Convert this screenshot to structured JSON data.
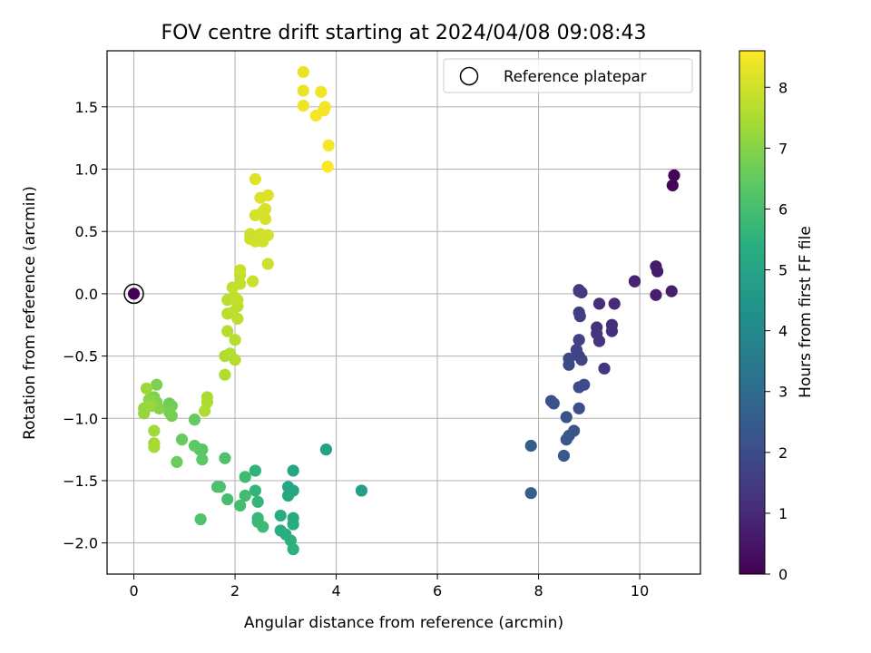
{
  "chart_data": {
    "type": "scatter",
    "title": "FOV centre drift starting at 2024/04/08 09:08:43",
    "xlabel": "Angular distance from reference (arcmin)",
    "ylabel": "Rotation from reference (arcmin)",
    "xlim": [
      -0.53,
      11.2
    ],
    "ylim": [
      -2.25,
      1.95
    ],
    "xticks": [
      0,
      2,
      4,
      6,
      8,
      10
    ],
    "yticks": [
      -2.0,
      -1.5,
      -1.0,
      -0.5,
      0.0,
      0.5,
      1.0,
      1.5
    ],
    "xtick_labels": [
      "0",
      "2",
      "4",
      "6",
      "8",
      "10"
    ],
    "ytick_labels": [
      "−2.0",
      "−1.5",
      "−1.0",
      "−0.5",
      "0.0",
      "0.5",
      "1.0",
      "1.5"
    ],
    "grid": true,
    "legend": {
      "entries": [
        "Reference platepar"
      ],
      "placement": "top-right"
    },
    "reference_point": {
      "x": 0,
      "y": 0
    },
    "colorbar": {
      "label": "Hours from first FF file",
      "range": [
        0,
        8.6
      ],
      "ticks": [
        0,
        1,
        2,
        3,
        4,
        5,
        6,
        7,
        8
      ],
      "tick_labels": [
        "0",
        "1",
        "2",
        "3",
        "4",
        "5",
        "6",
        "7",
        "8"
      ],
      "colormap": "viridis"
    },
    "points": [
      [
        0.0,
        0.0,
        0.0
      ],
      [
        10.68,
        0.95,
        0.05
      ],
      [
        10.65,
        0.87,
        0.1
      ],
      [
        10.32,
        0.22,
        0.6
      ],
      [
        10.35,
        0.18,
        0.65
      ],
      [
        10.63,
        0.02,
        0.7
      ],
      [
        10.32,
        -0.01,
        0.75
      ],
      [
        9.9,
        0.1,
        0.8
      ],
      [
        9.9,
        0.1,
        0.85
      ],
      [
        9.5,
        -0.08,
        1.0
      ],
      [
        9.2,
        -0.08,
        1.05
      ],
      [
        9.45,
        -0.25,
        1.1
      ],
      [
        9.45,
        -0.3,
        1.15
      ],
      [
        9.15,
        -0.27,
        1.2
      ],
      [
        9.15,
        -0.32,
        1.25
      ],
      [
        9.2,
        -0.38,
        1.3
      ],
      [
        9.3,
        -0.6,
        1.35
      ],
      [
        8.8,
        0.03,
        1.4
      ],
      [
        8.8,
        0.02,
        1.45
      ],
      [
        8.85,
        0.01,
        1.5
      ],
      [
        8.8,
        -0.15,
        1.55
      ],
      [
        8.82,
        -0.18,
        1.6
      ],
      [
        8.8,
        -0.37,
        1.65
      ],
      [
        8.75,
        -0.45,
        1.7
      ],
      [
        8.8,
        -0.5,
        1.75
      ],
      [
        8.85,
        -0.53,
        1.8
      ],
      [
        8.6,
        -0.52,
        1.85
      ],
      [
        8.6,
        -0.57,
        1.9
      ],
      [
        8.9,
        -0.73,
        1.95
      ],
      [
        8.8,
        -0.75,
        2.0
      ],
      [
        8.8,
        -0.92,
        2.05
      ],
      [
        8.25,
        -0.86,
        2.1
      ],
      [
        8.3,
        -0.88,
        2.15
      ],
      [
        8.55,
        -0.99,
        2.2
      ],
      [
        8.7,
        -1.1,
        2.25
      ],
      [
        8.6,
        -1.14,
        2.3
      ],
      [
        8.55,
        -1.17,
        2.35
      ],
      [
        8.5,
        -1.3,
        2.4
      ],
      [
        7.85,
        -1.22,
        2.55
      ],
      [
        7.85,
        -1.6,
        2.6
      ],
      [
        4.5,
        -1.58,
        4.8
      ],
      [
        3.8,
        -1.25,
        4.9
      ],
      [
        3.15,
        -1.42,
        5.0
      ],
      [
        3.15,
        -1.58,
        5.05
      ],
      [
        3.05,
        -1.55,
        5.1
      ],
      [
        3.05,
        -1.62,
        5.15
      ],
      [
        3.15,
        -1.8,
        5.2
      ],
      [
        3.15,
        -1.85,
        5.25
      ],
      [
        2.9,
        -1.78,
        5.3
      ],
      [
        3.0,
        -1.93,
        5.35
      ],
      [
        2.9,
        -1.9,
        5.4
      ],
      [
        3.1,
        -1.98,
        5.45
      ],
      [
        3.15,
        -2.05,
        5.5
      ],
      [
        2.4,
        -1.42,
        5.55
      ],
      [
        2.4,
        -1.58,
        5.6
      ],
      [
        2.45,
        -1.67,
        5.65
      ],
      [
        2.45,
        -1.8,
        5.7
      ],
      [
        2.45,
        -1.83,
        5.75
      ],
      [
        2.55,
        -1.87,
        5.8
      ],
      [
        2.2,
        -1.47,
        5.85
      ],
      [
        2.2,
        -1.62,
        5.9
      ],
      [
        2.1,
        -1.7,
        5.95
      ],
      [
        1.85,
        -1.65,
        6.0
      ],
      [
        1.7,
        -1.55,
        6.05
      ],
      [
        1.65,
        -1.55,
        6.1
      ],
      [
        1.8,
        -1.32,
        6.15
      ],
      [
        1.32,
        -1.81,
        6.2
      ],
      [
        1.35,
        -1.25,
        6.3
      ],
      [
        1.3,
        -1.25,
        6.35
      ],
      [
        1.35,
        -1.33,
        6.4
      ],
      [
        1.2,
        -1.22,
        6.45
      ],
      [
        1.2,
        -1.01,
        6.5
      ],
      [
        0.95,
        -1.17,
        6.55
      ],
      [
        0.85,
        -1.35,
        6.6
      ],
      [
        0.7,
        -0.88,
        6.65
      ],
      [
        0.75,
        -0.9,
        6.7
      ],
      [
        0.75,
        -0.98,
        6.75
      ],
      [
        0.7,
        -0.95,
        6.8
      ],
      [
        0.45,
        -0.73,
        6.85
      ],
      [
        0.4,
        -0.83,
        6.9
      ],
      [
        0.45,
        -0.87,
        6.95
      ],
      [
        0.5,
        -0.92,
        7.0
      ],
      [
        0.3,
        -0.85,
        7.05
      ],
      [
        0.35,
        -0.9,
        7.1
      ],
      [
        0.2,
        -0.92,
        7.15
      ],
      [
        0.2,
        -0.96,
        7.2
      ],
      [
        0.3,
        -0.9,
        7.25
      ],
      [
        0.25,
        -0.76,
        7.3
      ],
      [
        0.4,
        -1.1,
        7.35
      ],
      [
        0.4,
        -1.2,
        7.4
      ],
      [
        0.4,
        -1.23,
        7.45
      ],
      [
        1.45,
        -0.83,
        7.5
      ],
      [
        1.45,
        -0.87,
        7.52
      ],
      [
        1.4,
        -0.94,
        7.54
      ],
      [
        1.8,
        -0.5,
        7.56
      ],
      [
        1.8,
        -0.65,
        7.58
      ],
      [
        1.9,
        -0.48,
        7.6
      ],
      [
        2.0,
        -0.53,
        7.62
      ],
      [
        1.85,
        -0.3,
        7.64
      ],
      [
        2.0,
        -0.37,
        7.66
      ],
      [
        1.85,
        -0.05,
        7.68
      ],
      [
        1.85,
        -0.16,
        7.7
      ],
      [
        1.95,
        -0.15,
        7.72
      ],
      [
        2.05,
        -0.2,
        7.74
      ],
      [
        2.05,
        -0.1,
        7.76
      ],
      [
        2.0,
        -0.03,
        7.78
      ],
      [
        2.05,
        -0.05,
        7.8
      ],
      [
        1.95,
        0.05,
        7.82
      ],
      [
        2.1,
        0.08,
        7.84
      ],
      [
        2.1,
        0.15,
        7.86
      ],
      [
        2.1,
        0.19,
        7.88
      ],
      [
        2.35,
        0.1,
        7.9
      ],
      [
        2.65,
        0.24,
        7.92
      ],
      [
        2.3,
        0.44,
        7.94
      ],
      [
        2.3,
        0.48,
        7.96
      ],
      [
        2.4,
        0.42,
        7.98
      ],
      [
        2.55,
        0.42,
        8.0
      ],
      [
        2.5,
        0.48,
        8.02
      ],
      [
        2.65,
        0.47,
        8.04
      ],
      [
        2.4,
        0.63,
        8.06
      ],
      [
        2.6,
        0.6,
        8.08
      ],
      [
        2.55,
        0.66,
        8.1
      ],
      [
        2.6,
        0.68,
        8.12
      ],
      [
        2.5,
        0.77,
        8.14
      ],
      [
        2.65,
        0.79,
        8.16
      ],
      [
        2.4,
        0.92,
        8.18
      ],
      [
        3.35,
        1.78,
        8.3
      ],
      [
        3.35,
        1.63,
        8.35
      ],
      [
        3.35,
        1.51,
        8.4
      ],
      [
        3.7,
        1.62,
        8.42
      ],
      [
        3.75,
        1.47,
        8.44
      ],
      [
        3.78,
        1.5,
        8.46
      ],
      [
        3.6,
        1.43,
        8.48
      ],
      [
        3.85,
        1.19,
        8.52
      ],
      [
        3.83,
        1.02,
        8.58
      ]
    ]
  }
}
